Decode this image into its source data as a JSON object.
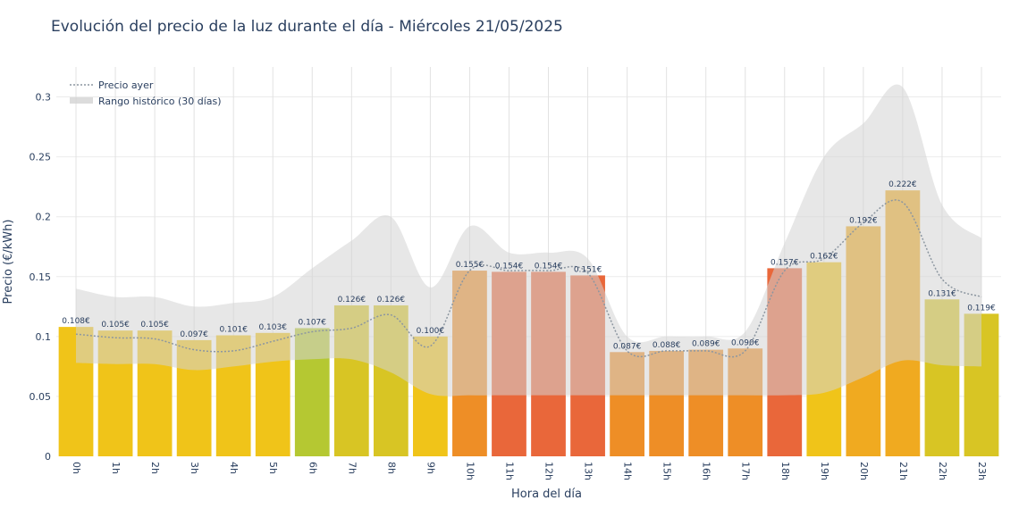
{
  "chart_data": {
    "type": "bar",
    "title": "Evolución del precio de la luz durante el día - Miércoles 21/05/2025",
    "xlabel": "Hora del día",
    "ylabel": "Precio (€/kWh)",
    "ylim": [
      0,
      0.325
    ],
    "yticks": [
      0,
      0.05,
      0.1,
      0.15,
      0.2,
      0.25,
      0.3
    ],
    "ytick_labels": [
      "0",
      "0.05",
      "0.1",
      "0.15",
      "0.2",
      "0.25",
      "0.3"
    ],
    "categories": [
      "0h",
      "1h",
      "2h",
      "3h",
      "4h",
      "5h",
      "6h",
      "7h",
      "8h",
      "9h",
      "10h",
      "11h",
      "12h",
      "13h",
      "14h",
      "15h",
      "16h",
      "17h",
      "18h",
      "19h",
      "20h",
      "21h",
      "22h",
      "23h"
    ],
    "values": [
      0.108,
      0.105,
      0.105,
      0.097,
      0.101,
      0.103,
      0.107,
      0.126,
      0.126,
      0.1,
      0.155,
      0.154,
      0.154,
      0.151,
      0.087,
      0.088,
      0.089,
      0.09,
      0.157,
      0.162,
      0.192,
      0.222,
      0.131,
      0.119
    ],
    "value_labels": [
      "0.108€",
      "0.105€",
      "0.105€",
      "0.097€",
      "0.101€",
      "0.103€",
      "0.107€",
      "0.126€",
      "0.126€",
      "0.100€",
      "0.155€",
      "0.154€",
      "0.154€",
      "0.151€",
      "0.087€",
      "0.088€",
      "0.089€",
      "0.090€",
      "0.157€",
      "0.162€",
      "0.192€",
      "0.222€",
      "0.131€",
      "0.119€"
    ],
    "bar_colors": [
      "#f0c419",
      "#f0c419",
      "#f0c419",
      "#f0c419",
      "#f0c419",
      "#f0c419",
      "#b5c832",
      "#d8c524",
      "#d8c524",
      "#f0c419",
      "#ee8e26",
      "#e9673a",
      "#e9673a",
      "#e9673a",
      "#ee8e26",
      "#ee8e26",
      "#ee8e26",
      "#ee8e26",
      "#e9673a",
      "#f0c419",
      "#f0aa20",
      "#f0aa20",
      "#d8c524",
      "#d8c524"
    ],
    "series": [
      {
        "name": "Precio ayer",
        "values": [
          0.102,
          0.099,
          0.098,
          0.089,
          0.088,
          0.096,
          0.104,
          0.107,
          0.118,
          0.092,
          0.155,
          0.155,
          0.155,
          0.153,
          0.088,
          0.088,
          0.088,
          0.088,
          0.155,
          0.165,
          0.195,
          0.212,
          0.148,
          0.133
        ],
        "color": "#8c96a0"
      },
      {
        "name": "Rango histórico (30 días)",
        "upper": [
          0.14,
          0.133,
          0.133,
          0.125,
          0.128,
          0.133,
          0.157,
          0.18,
          0.2,
          0.141,
          0.192,
          0.17,
          0.17,
          0.165,
          0.1,
          0.1,
          0.1,
          0.104,
          0.178,
          0.25,
          0.278,
          0.308,
          0.21,
          0.182
        ],
        "lower": [
          0.078,
          0.077,
          0.077,
          0.072,
          0.075,
          0.079,
          0.081,
          0.081,
          0.07,
          0.052,
          0.051,
          0.051,
          0.051,
          0.051,
          0.051,
          0.051,
          0.051,
          0.051,
          0.051,
          0.053,
          0.066,
          0.08,
          0.076,
          0.075
        ],
        "color": "#d3d3d3"
      }
    ],
    "grid": true,
    "legend_position": "top-left"
  }
}
